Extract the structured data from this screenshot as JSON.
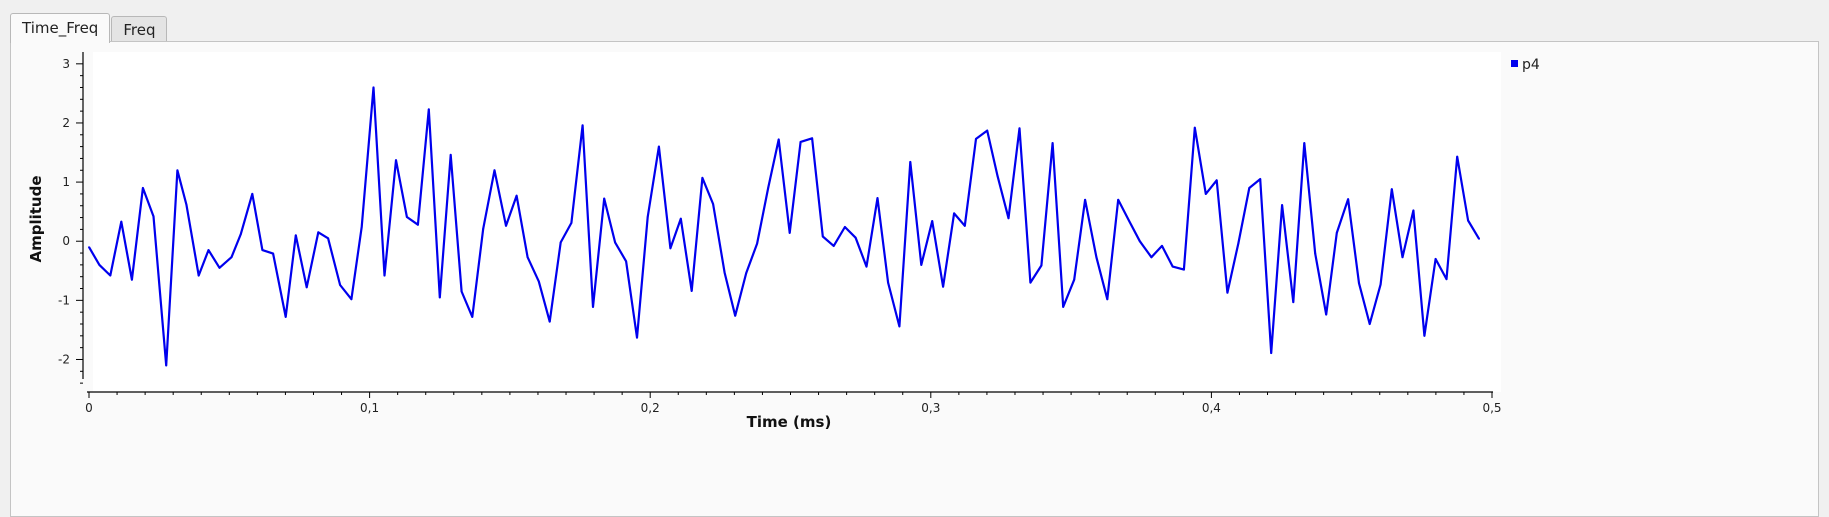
{
  "tabs": [
    {
      "label": "Time_Freq",
      "active": true
    },
    {
      "label": "Freq",
      "active": false
    }
  ],
  "chart_data": {
    "type": "line",
    "xlabel": "Time (ms)",
    "ylabel": "Amplitude",
    "xlim": [
      0,
      0.5
    ],
    "ylim": [
      -2.55,
      3.2
    ],
    "x_ticks": [
      0,
      0.1,
      0.2,
      0.3,
      0.4,
      0.5
    ],
    "x_tick_labels": [
      "0",
      "0,1",
      "0,2",
      "0,3",
      "0,4",
      "0,5"
    ],
    "y_ticks": [
      -2,
      -1,
      0,
      1,
      2,
      3
    ],
    "y_tick_labels": [
      "-2",
      "-1",
      "0",
      "1",
      "2",
      "3"
    ],
    "grid": false,
    "legend_position": "top-right",
    "color": "#0000ee",
    "series": [
      {
        "name": "p4",
        "x": [
          0,
          0.0037,
          0.0076,
          0.0115,
          0.0153,
          0.0192,
          0.023,
          0.0275,
          0.0315,
          0.0347,
          0.0391,
          0.0426,
          0.0465,
          0.0508,
          0.0541,
          0.0582,
          0.0618,
          0.0656,
          0.0701,
          0.0737,
          0.0776,
          0.0817,
          0.0852,
          0.0895,
          0.0935,
          0.0972,
          0.1014,
          0.1053,
          0.1094,
          0.1133,
          0.1172,
          0.1211,
          0.125,
          0.1289,
          0.1328,
          0.1366,
          0.1405,
          0.1445,
          0.1486,
          0.1524,
          0.1563,
          0.1603,
          0.1642,
          0.1681,
          0.1719,
          0.1759,
          0.1796,
          0.1836,
          0.1875,
          0.1914,
          0.1953,
          0.1991,
          0.2031,
          0.2072,
          0.2109,
          0.2148,
          0.2186,
          0.2224,
          0.2265,
          0.2303,
          0.2342,
          0.2381,
          0.2421,
          0.2458,
          0.2497,
          0.2536,
          0.2577,
          0.2615,
          0.2654,
          0.2694,
          0.2732,
          0.2771,
          0.281,
          0.2848,
          0.2888,
          0.2927,
          0.2966,
          0.3005,
          0.3044,
          0.3083,
          0.3121,
          0.3161,
          0.3201,
          0.3238,
          0.3277,
          0.3316,
          0.3355,
          0.3394,
          0.3434,
          0.3472,
          0.3511,
          0.355,
          0.359,
          0.3629,
          0.3668,
          0.3706,
          0.3745,
          0.3786,
          0.3824,
          0.3862,
          0.3902,
          0.3941,
          0.398,
          0.4019,
          0.4057,
          0.4096,
          0.4135,
          0.4174,
          0.4213,
          0.4252,
          0.4292,
          0.4331,
          0.437,
          0.4409,
          0.4447,
          0.4487,
          0.4526,
          0.4564,
          0.4603,
          0.4643,
          0.4681,
          0.472,
          0.4759,
          0.4799,
          0.4838,
          0.4876,
          0.4915,
          0.4954
        ],
        "y": [
          -0.1,
          -0.4,
          -0.58,
          0.33,
          -0.65,
          0.9,
          0.42,
          -2.1,
          1.2,
          0.62,
          -0.58,
          -0.15,
          -0.45,
          -0.27,
          0.12,
          0.8,
          -0.15,
          -0.21,
          -1.28,
          0.1,
          -0.78,
          0.15,
          0.05,
          -0.74,
          -0.98,
          0.24,
          2.6,
          -0.58,
          1.37,
          0.41,
          0.28,
          2.23,
          -0.95,
          1.46,
          -0.85,
          -1.28,
          0.21,
          1.2,
          0.26,
          0.77,
          -0.27,
          -0.68,
          -1.36,
          -0.02,
          0.31,
          1.96,
          -1.11,
          0.72,
          -0.02,
          -0.34,
          -1.63,
          0.41,
          1.6,
          -0.12,
          0.38,
          -0.84,
          1.07,
          0.63,
          -0.53,
          -1.26,
          -0.54,
          -0.04,
          0.91,
          1.72,
          0.14,
          1.68,
          1.74,
          0.08,
          -0.08,
          0.24,
          0.06,
          -0.43,
          0.73,
          -0.7,
          -1.44,
          1.34,
          -0.4,
          0.34,
          -0.77,
          0.47,
          0.26,
          1.73,
          1.87,
          1.1,
          0.39,
          1.91,
          -0.7,
          -0.41,
          1.66,
          -1.11,
          -0.65,
          0.7,
          -0.27,
          -0.98,
          0.7,
          0.35,
          0.0,
          -0.27,
          -0.08,
          -0.43,
          -0.48,
          1.92,
          0.8,
          1.03,
          -0.87,
          -0.04,
          0.9,
          1.05,
          -1.89,
          0.61,
          -1.03,
          1.66,
          -0.21,
          -1.24,
          0.14,
          0.71,
          -0.71,
          -1.4,
          -0.73,
          0.88,
          -0.27,
          0.52,
          -1.6,
          -0.3,
          -0.64,
          1.43,
          0.35,
          0.04
        ]
      }
    ]
  }
}
